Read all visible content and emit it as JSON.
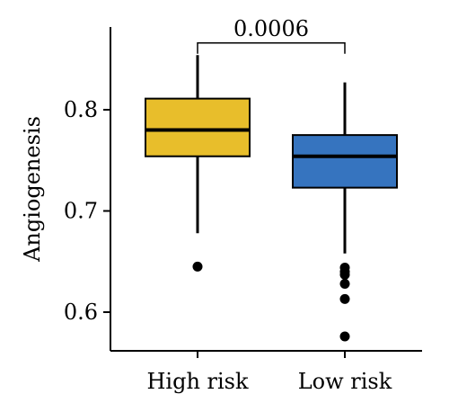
{
  "chart_data": {
    "type": "box",
    "ylabel": "Angiogenesis",
    "categories": [
      "High risk",
      "Low risk"
    ],
    "y_ticks": [
      0.6,
      0.7,
      0.8
    ],
    "y_tick_labels": [
      "0.6",
      "0.7",
      "0.8"
    ],
    "ylim": [
      0.565,
      0.88
    ],
    "grid": false,
    "series": [
      {
        "category": "High risk",
        "color": "#E8BE2B",
        "whisker_low": 0.678,
        "q1": 0.754,
        "median": 0.78,
        "q3": 0.811,
        "whisker_high": 0.854,
        "outliers": [
          0.645
        ]
      },
      {
        "category": "Low risk",
        "color": "#3674BF",
        "whisker_low": 0.658,
        "q1": 0.723,
        "median": 0.754,
        "q3": 0.775,
        "whisker_high": 0.827,
        "outliers": [
          0.644,
          0.64,
          0.637,
          0.628,
          0.613,
          0.576
        ]
      }
    ],
    "significance": {
      "label": "0.0006",
      "between": [
        "High risk",
        "Low risk"
      ],
      "y": 0.866
    }
  }
}
